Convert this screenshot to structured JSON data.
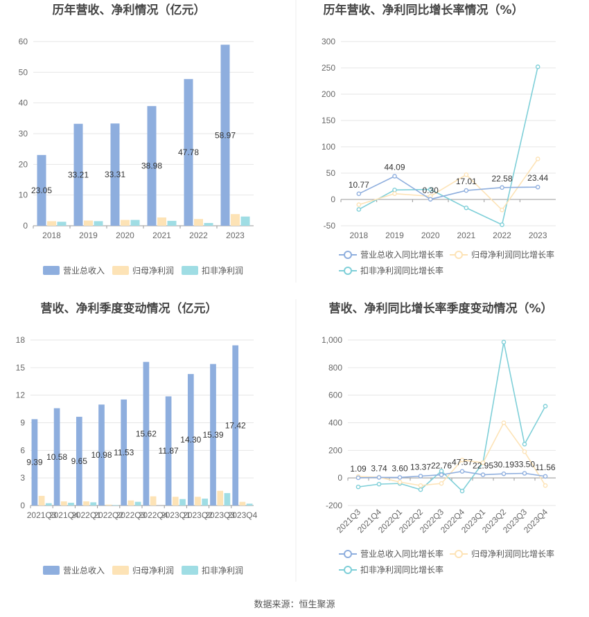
{
  "colors": {
    "revenue": "#8eaede",
    "net_profit": "#fde3b6",
    "deducted_profit": "#9fdde4",
    "rev_line": "#8eaede",
    "np_line": "#fde3b6",
    "dp_line": "#7ecfd8",
    "grid": "#e6e6e6",
    "axis": "#999999"
  },
  "legend_labels": {
    "revenue": "营业总收入",
    "net_profit": "归母净利润",
    "deducted_profit": "扣非净利润",
    "rev_growth": "营业总收入同比增长率",
    "np_growth": "归母净利润同比增长率",
    "dp_growth": "扣非净利润同比增长率"
  },
  "source": "数据来源：恒生聚源",
  "chart_data": [
    {
      "type": "bar",
      "title": "历年营收、净利情况（亿元）",
      "categories": [
        "2018",
        "2019",
        "2020",
        "2021",
        "2022",
        "2023"
      ],
      "ylim": [
        0,
        60
      ],
      "yticks": [
        0,
        10,
        20,
        30,
        40,
        50,
        60
      ],
      "series": [
        {
          "name": "营业总收入",
          "values": [
            23.05,
            33.21,
            33.31,
            38.98,
            47.78,
            58.97
          ],
          "labels": [
            "23.05",
            "33.21",
            "33.31",
            "38.98",
            "47.78",
            "58.97"
          ]
        },
        {
          "name": "归母净利润",
          "values": [
            1.5,
            1.7,
            1.9,
            2.7,
            2.2,
            3.8
          ]
        },
        {
          "name": "扣非净利润",
          "values": [
            1.3,
            1.5,
            1.9,
            1.6,
            0.9,
            3.0
          ]
        }
      ]
    },
    {
      "type": "line",
      "title": "历年营收、净利同比增长率情况（%）",
      "categories": [
        "2018",
        "2019",
        "2020",
        "2021",
        "2022",
        "2023"
      ],
      "ylim": [
        -50,
        300
      ],
      "yticks": [
        -50,
        0,
        50,
        100,
        150,
        200,
        250,
        300
      ],
      "series": [
        {
          "name": "营业总收入同比增长率",
          "values": [
            10.77,
            44.09,
            0.3,
            17.01,
            22.58,
            23.44
          ],
          "labels": [
            "10.77",
            "44.09",
            "0.30",
            "17.01",
            "22.58",
            "23.44"
          ]
        },
        {
          "name": "归母净利润同比增长率",
          "values": [
            -10,
            11,
            6,
            47,
            -20,
            77
          ]
        },
        {
          "name": "扣非净利润同比增长率",
          "values": [
            -19,
            18,
            19,
            -16,
            -48,
            252
          ]
        }
      ]
    },
    {
      "type": "bar",
      "title": "营收、净利季度变动情况（亿元）",
      "categories": [
        "2021Q3",
        "2021Q4",
        "2022Q1",
        "2022Q2",
        "2022Q3",
        "2022Q4",
        "2023Q1",
        "2023Q2",
        "2023Q3",
        "2023Q4"
      ],
      "ylim": [
        0,
        18
      ],
      "yticks": [
        0,
        3,
        6,
        9,
        12,
        15,
        18
      ],
      "series": [
        {
          "name": "营业总收入",
          "values": [
            9.39,
            10.58,
            9.65,
            10.98,
            11.53,
            15.62,
            11.87,
            14.3,
            15.39,
            17.42
          ],
          "labels": [
            "9.39",
            "10.58",
            "9.65",
            "10.98",
            "11.53",
            "15.62",
            "11.87",
            "14.30",
            "15.39",
            "17.42"
          ]
        },
        {
          "name": "归母净利润",
          "values": [
            1.05,
            0.45,
            0.45,
            0.1,
            0.55,
            1.0,
            0.95,
            0.95,
            1.6,
            0.4
          ]
        },
        {
          "name": "扣非净利润",
          "values": [
            0.25,
            0.3,
            0.35,
            0.05,
            0.4,
            0.0,
            0.7,
            0.75,
            1.35,
            0.2
          ]
        }
      ]
    },
    {
      "type": "line",
      "title": "营收、净利同比增长率季度变动情况（%）",
      "categories": [
        "2021Q3",
        "2021Q4",
        "2022Q1",
        "2022Q2",
        "2022Q3",
        "2022Q4",
        "2023Q1",
        "2023Q2",
        "2023Q3",
        "2023Q4"
      ],
      "ylim": [
        -200,
        1000
      ],
      "yticks": [
        -200,
        0,
        200,
        400,
        600,
        800,
        1000
      ],
      "ytick_labels": [
        "-200",
        "0",
        "200",
        "400",
        "600",
        "800",
        "1,000"
      ],
      "rotate_x": true,
      "series": [
        {
          "name": "营业总收入同比增长率",
          "values": [
            1.09,
            3.74,
            3.6,
            13.37,
            22.76,
            47.57,
            22.95,
            30.19,
            33.5,
            11.56
          ],
          "labels": [
            "1.09",
            "3.74",
            "3.60",
            "13.37",
            "22.76",
            "47.57",
            "22.95",
            "30.19",
            "33.50",
            "11.56"
          ]
        },
        {
          "name": "归母净利润同比增长率",
          "values": [
            10,
            5,
            -30,
            -55,
            -40,
            130,
            110,
            400,
            190,
            -55
          ]
        },
        {
          "name": "扣非净利润同比增长率",
          "values": [
            -65,
            -45,
            -40,
            -85,
            50,
            -95,
            110,
            985,
            245,
            520
          ]
        }
      ]
    }
  ]
}
